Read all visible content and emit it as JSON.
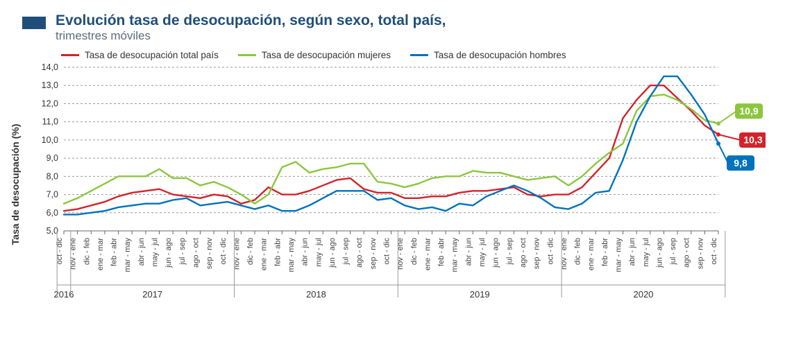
{
  "header": {
    "title": "Evolución tasa de desocupación, según sexo, total país,",
    "subtitle": "trimestres móviles"
  },
  "ylabel": "Tasa de desocupación (%)",
  "chart": {
    "type": "line",
    "ylim": [
      5.0,
      14.0
    ],
    "ytick_step": 1.0,
    "yticks_fmt": [
      "5,0",
      "6,0",
      "7,0",
      "8,0",
      "9,0",
      "10,0",
      "11,0",
      "12,0",
      "13,0",
      "14,0"
    ],
    "background_color": "#ffffff",
    "grid_color": "#999999",
    "categories": [
      "oct - dic",
      "nov - ene",
      "dic - feb",
      "ene - mar",
      "feb - abr",
      "mar - may",
      "abr - jun",
      "may - jul",
      "jun - ago",
      "jul - sep",
      "ago - oct",
      "sep - nov",
      "oct - dic",
      "nov - ene",
      "dic - feb",
      "ene - mar",
      "feb - abr",
      "mar - may",
      "abr - jun",
      "may - jul",
      "jun - ago",
      "jul - sep",
      "ago - oct",
      "sep - nov",
      "oct - dic",
      "nov - ene",
      "dic - feb",
      "ene - mar",
      "feb - abr",
      "mar - may",
      "abr - jun",
      "may - jul",
      "jun - ago",
      "jul - sep",
      "ago - oct",
      "sep - nov",
      "oct - dic",
      "nov - ene",
      "dic - feb",
      "ene - mar",
      "feb - abr",
      "mar - may",
      "abr - jun",
      "may - jul",
      "jun - ago",
      "jul - sep",
      "ago - oct",
      "sep - nov",
      "oct - dic"
    ],
    "year_groups": [
      {
        "label": "2016",
        "start": 0,
        "end": 0
      },
      {
        "label": "2017",
        "start": 1,
        "end": 12
      },
      {
        "label": "2018",
        "start": 13,
        "end": 24
      },
      {
        "label": "2019",
        "start": 25,
        "end": 36
      },
      {
        "label": "2020",
        "start": 37,
        "end": 48
      }
    ],
    "series": [
      {
        "key": "total",
        "label": "Tasa de desocupación total país",
        "color": "#d2232a",
        "values": [
          6.1,
          6.2,
          6.4,
          6.6,
          6.9,
          7.1,
          7.2,
          7.3,
          7.0,
          6.9,
          6.8,
          7.0,
          6.9,
          6.5,
          6.7,
          7.4,
          7.0,
          7.0,
          7.2,
          7.5,
          7.8,
          7.9,
          7.3,
          7.1,
          7.1,
          6.8,
          6.8,
          6.9,
          6.9,
          7.1,
          7.2,
          7.2,
          7.3,
          7.4,
          7.0,
          6.9,
          7.0,
          7.0,
          7.4,
          8.2,
          9.0,
          11.2,
          12.2,
          13.0,
          13.0,
          12.3,
          11.6,
          10.8,
          10.3
        ],
        "callout": "10,3"
      },
      {
        "key": "mujeres",
        "label": "Tasa de desocupación mujeres",
        "color": "#8cc63f",
        "values": [
          6.5,
          6.8,
          7.2,
          7.6,
          8.0,
          8.0,
          8.0,
          8.4,
          7.9,
          7.9,
          7.5,
          7.7,
          7.4,
          7.0,
          6.5,
          7.0,
          8.5,
          8.8,
          8.2,
          8.4,
          8.5,
          8.7,
          8.7,
          7.7,
          7.6,
          7.4,
          7.6,
          7.9,
          8.0,
          8.0,
          8.3,
          8.2,
          8.2,
          8.0,
          7.8,
          7.9,
          8.0,
          7.5,
          8.0,
          8.7,
          9.3,
          9.8,
          11.6,
          12.4,
          12.5,
          12.2,
          11.7,
          11.1,
          10.9
        ],
        "callout": "10,9"
      },
      {
        "key": "hombres",
        "label": "Tasa de desocupación hombres",
        "color": "#0072bc",
        "values": [
          5.9,
          5.9,
          6.0,
          6.1,
          6.3,
          6.4,
          6.5,
          6.5,
          6.7,
          6.8,
          6.4,
          6.5,
          6.6,
          6.4,
          6.2,
          6.4,
          6.1,
          6.1,
          6.4,
          6.8,
          7.2,
          7.2,
          7.2,
          6.7,
          6.8,
          6.4,
          6.2,
          6.3,
          6.1,
          6.5,
          6.4,
          6.9,
          7.2,
          7.5,
          7.2,
          6.8,
          6.3,
          6.2,
          6.5,
          7.1,
          7.2,
          8.9,
          11.0,
          12.4,
          13.5,
          13.5,
          12.5,
          11.4,
          9.8
        ],
        "callout": "9,8"
      }
    ]
  },
  "colors": {
    "header_icon": "#1f4e79",
    "title": "#1f4e79",
    "subtitle": "#5a6b7a"
  }
}
